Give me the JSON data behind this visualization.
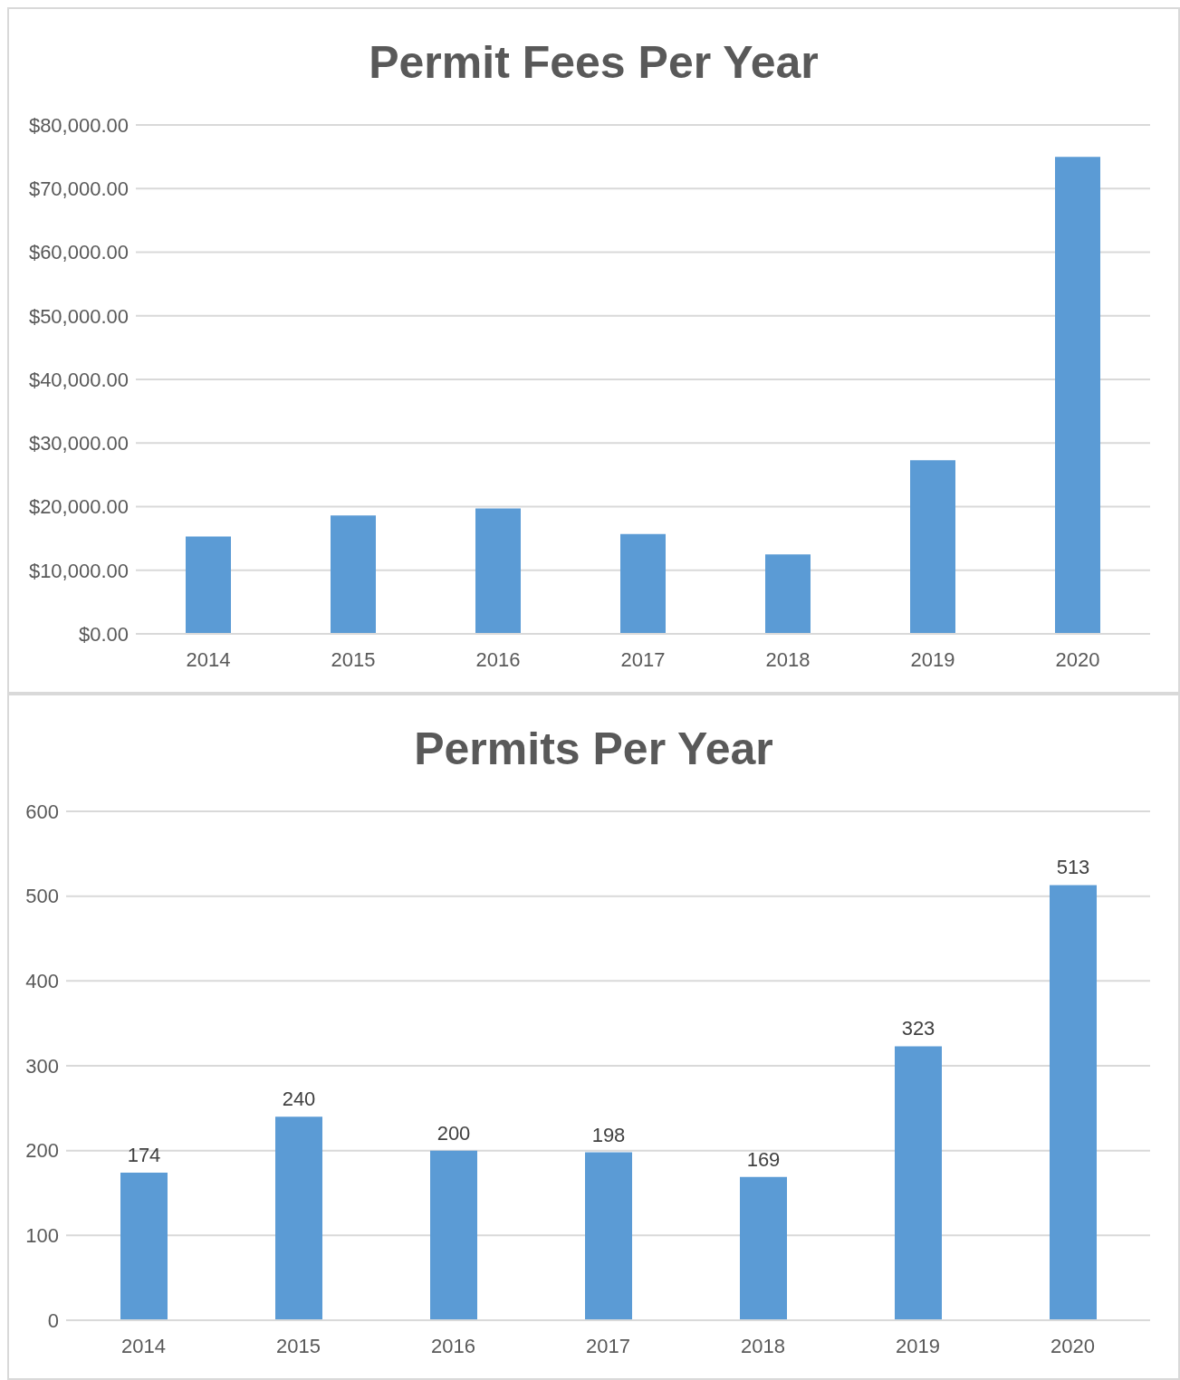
{
  "chart_data": [
    {
      "type": "bar",
      "title": "Permit Fees Per Year",
      "categories": [
        "2014",
        "2015",
        "2016",
        "2017",
        "2018",
        "2019",
        "2020"
      ],
      "values": [
        15300,
        18600,
        19700,
        15700,
        12500,
        27300,
        75000
      ],
      "color": "#5b9bd5",
      "ylim": [
        0,
        80000
      ],
      "yticks": [
        {
          "value": 0,
          "label": "$0.00"
        },
        {
          "value": 10000,
          "label": "$10,000.00"
        },
        {
          "value": 20000,
          "label": "$20,000.00"
        },
        {
          "value": 30000,
          "label": "$30,000.00"
        },
        {
          "value": 40000,
          "label": "$40,000.00"
        },
        {
          "value": 50000,
          "label": "$50,000.00"
        },
        {
          "value": 60000,
          "label": "$60,000.00"
        },
        {
          "value": 70000,
          "label": "$70,000.00"
        },
        {
          "value": 80000,
          "label": "$80,000.00"
        }
      ],
      "grid": "y",
      "legend": false
    },
    {
      "type": "bar",
      "title": "Permits Per Year",
      "categories": [
        "2014",
        "2015",
        "2016",
        "2017",
        "2018",
        "2019",
        "2020"
      ],
      "values": [
        174,
        240,
        200,
        198,
        169,
        323,
        513
      ],
      "color": "#5b9bd5",
      "ylim": [
        0,
        600
      ],
      "yticks": [
        0,
        100,
        200,
        300,
        400,
        500,
        600
      ],
      "grid": "y",
      "legend": false,
      "data_labels": true
    }
  ]
}
